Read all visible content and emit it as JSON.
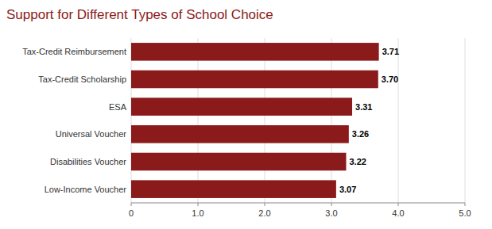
{
  "chart_data": {
    "type": "bar",
    "orientation": "horizontal",
    "title": "Support for Different Types of School Choice",
    "categories": [
      "Low-Income Voucher",
      "Disabilities Voucher",
      "Universal Voucher",
      "ESA",
      "Tax-Credit Scholarship",
      "Tax-Credit Reimbursement"
    ],
    "values": [
      3.07,
      3.22,
      3.26,
      3.31,
      3.7,
      3.71
    ],
    "value_labels": [
      "3.07",
      "3.22",
      "3.26",
      "3.31",
      "3.70",
      "3.71"
    ],
    "data_labels": true,
    "color": "#8B1A1A",
    "xlim": [
      0,
      5.0
    ],
    "xticks": [
      0,
      {
        "value": 1.0,
        "label": "1.0"
      },
      {
        "value": 2.0,
        "label": "2.0"
      },
      {
        "value": 3.0,
        "label": "3.0"
      },
      {
        "value": 4.0,
        "label": "4.0"
      },
      {
        "value": 5.0,
        "label": "5.0"
      }
    ],
    "grid": true
  }
}
